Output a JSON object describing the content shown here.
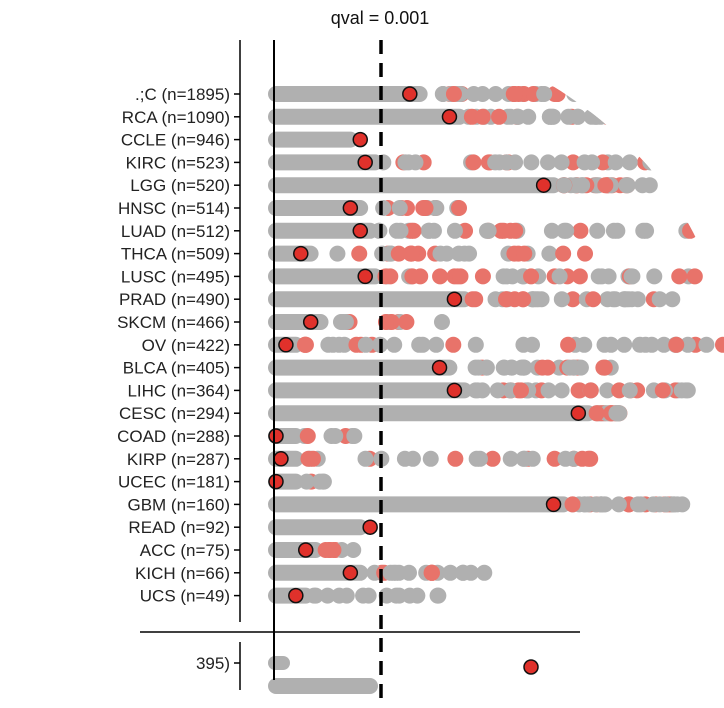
{
  "chart_data": {
    "type": "scatter",
    "title": "qval = 0.001",
    "xlabel": "",
    "ylabel": "",
    "colors": {
      "cloud": "#b0b0b0",
      "highlight": "#e8736a",
      "marker": "#e0312b",
      "axis": "#000000"
    },
    "xlim": [
      0,
      1
    ],
    "vline": 0.0,
    "threshold": 0.22,
    "grid": false,
    "legend": "none",
    "categories": [
      ".;C (n=1895)",
      "RCA (n=1090)",
      "CCLE (n=946)",
      "KIRC (n=523)",
      "LGG (n=520)",
      "HNSC (n=514)",
      "LUAD (n=512)",
      "THCA (n=509)",
      "LUSC (n=495)",
      "PRAD (n=490)",
      "SKCM (n=466)",
      "OV (n=422)",
      "BLCA (n=405)",
      "LIHC (n=364)",
      "CESC (n=294)",
      "COAD (n=288)",
      "KIRP (n=287)",
      "UCEC (n=181)",
      "GBM (n=160)",
      "READ (n=92)",
      "ACC (n=75)",
      "KICH (n=66)",
      "UCS (n=49)"
    ],
    "marker_values": [
      0.27,
      0.35,
      0.17,
      0.18,
      0.54,
      0.15,
      0.17,
      0.05,
      0.18,
      0.36,
      0.07,
      0.02,
      0.33,
      0.36,
      0.61,
      0.0,
      0.01,
      0.0,
      0.56,
      0.19,
      0.06,
      0.15,
      0.04
    ],
    "cloud_extent": [
      0.7,
      0.77,
      0.17,
      0.82,
      0.76,
      0.38,
      0.93,
      0.66,
      0.85,
      0.81,
      0.35,
      0.92,
      0.69,
      0.84,
      0.7,
      0.17,
      0.66,
      0.13,
      0.85,
      0.19,
      0.17,
      0.44,
      0.35
    ],
    "lower_panel_label": "395)"
  }
}
